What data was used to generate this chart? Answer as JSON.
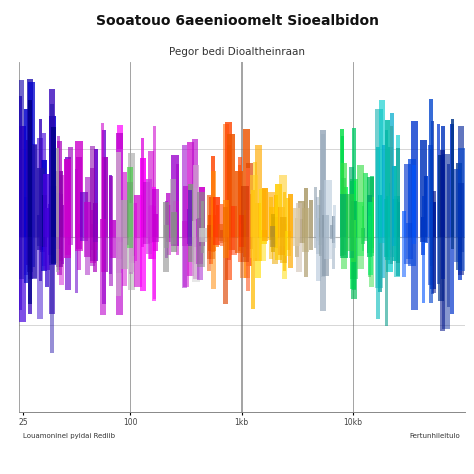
{
  "title": "Sooatouo 6aeenioomelt Sioealbidon",
  "subtitle": "Pegor bedi Dioaltheinraan",
  "xlabel_left": "Louamoninel pyidai Rediib",
  "xlabel_right": "Fertunhileitulo",
  "xtick_labels": [
    "25",
    "100",
    "1kb",
    "10kb"
  ],
  "background_color": "#ffffff",
  "title_fontsize": 10,
  "subtitle_fontsize": 7.5,
  "ylim": [
    -1.0,
    1.0
  ],
  "color_zones": [
    {
      "color": "#3300cc",
      "alpha": 0.9
    },
    {
      "color": "#6600cc",
      "alpha": 0.85
    },
    {
      "color": "#9900cc",
      "alpha": 0.85
    },
    {
      "color": "#cc00cc",
      "alpha": 0.85
    },
    {
      "color": "#ff00ff",
      "alpha": 0.8
    },
    {
      "color": "#cc33cc",
      "alpha": 0.8
    },
    {
      "color": "#33cc33",
      "alpha": 0.75
    },
    {
      "color": "#aaaaaa",
      "alpha": 0.5
    },
    {
      "color": "#cc99cc",
      "alpha": 0.6
    },
    {
      "color": "#888888",
      "alpha": 0.5
    },
    {
      "color": "#ff6600",
      "alpha": 0.85
    },
    {
      "color": "#ff3300",
      "alpha": 0.85
    },
    {
      "color": "#ffaa00",
      "alpha": 0.85
    },
    {
      "color": "#ffcc00",
      "alpha": 0.85
    },
    {
      "color": "#ffdd00",
      "alpha": 0.85
    },
    {
      "color": "#999966",
      "alpha": 0.6
    },
    {
      "color": "#aaaaaa",
      "alpha": 0.4
    },
    {
      "color": "#00cc66",
      "alpha": 0.85
    },
    {
      "color": "#00ff44",
      "alpha": 0.85
    },
    {
      "color": "#009999",
      "alpha": 0.85
    },
    {
      "color": "#00cccc",
      "alpha": 0.85
    },
    {
      "color": "#00aacc",
      "alpha": 0.85
    },
    {
      "color": "#0033cc",
      "alpha": 0.9
    },
    {
      "color": "#0055ff",
      "alpha": 0.9
    },
    {
      "color": "#003399",
      "alpha": 0.95
    }
  ]
}
